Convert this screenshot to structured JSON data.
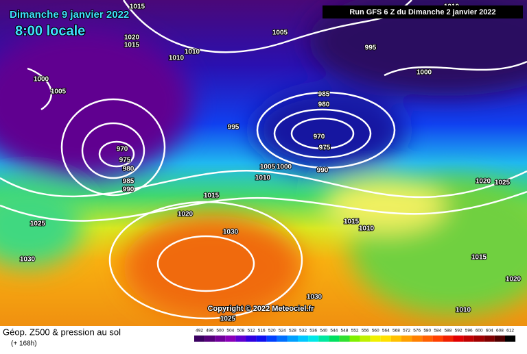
{
  "header": {
    "title": "Dimanche 9 janvier 2022",
    "time": "8:00 locale",
    "run": "Run GFS 6 Z du Dimanche 2 janvier 2022"
  },
  "copyright": "Copyright © 2022 Meteociel.fr",
  "footer": {
    "title": "Géop. Z500 & pression au sol",
    "lead": "(+ 168h)"
  },
  "legend": {
    "values": [
      492,
      496,
      500,
      504,
      508,
      512,
      516,
      520,
      524,
      528,
      532,
      536,
      540,
      544,
      548,
      552,
      556,
      560,
      564,
      568,
      572,
      576,
      580,
      584,
      588,
      592,
      596,
      600,
      604,
      608,
      612
    ],
    "colors": [
      "#3a0060",
      "#55007a",
      "#70009a",
      "#8a00b8",
      "#6000d0",
      "#3000e0",
      "#1010f0",
      "#0040ff",
      "#0070ff",
      "#00a0ff",
      "#00c8ff",
      "#00e8e8",
      "#00e8a0",
      "#00e060",
      "#30e030",
      "#80f000",
      "#c0f000",
      "#f0f000",
      "#ffe000",
      "#ffc000",
      "#ffa000",
      "#ff8000",
      "#ff6000",
      "#ff4000",
      "#f02000",
      "#e00000",
      "#c00000",
      "#a00000",
      "#800000",
      "#500000",
      "#000000"
    ]
  },
  "isobar_labels": [
    1015,
    1005,
    995,
    1000,
    1010,
    1020,
    1015,
    1010,
    1010,
    1000,
    1005,
    985,
    980,
    995,
    970,
    975,
    970,
    975,
    980,
    985,
    990,
    1005,
    1000,
    990,
    1010,
    1015,
    1020,
    1025,
    1030,
    1030,
    1015,
    1010,
    1020,
    1025,
    1015,
    1030,
    1025,
    1010,
    1020
  ]
}
